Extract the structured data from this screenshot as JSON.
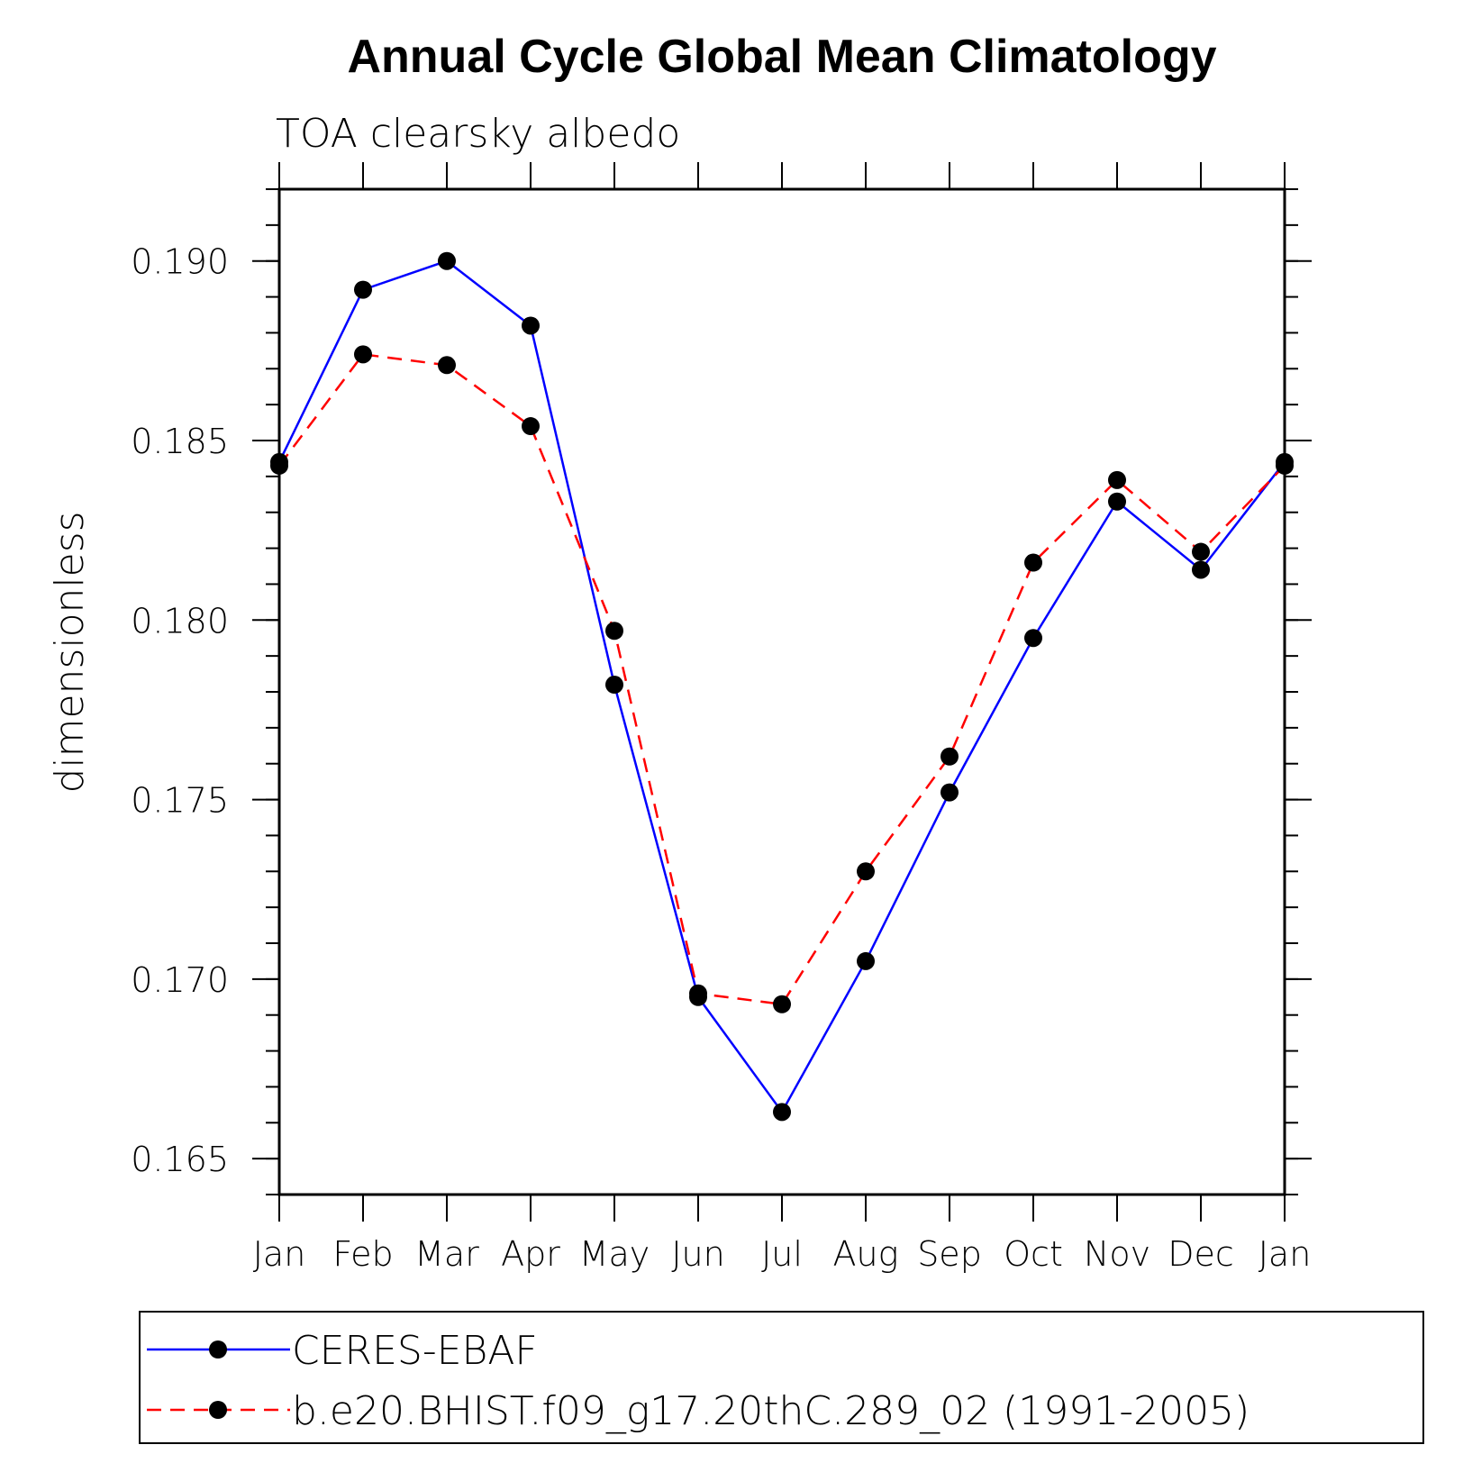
{
  "chart_data": {
    "type": "line",
    "title": "Annual Cycle Global Mean Climatology",
    "subtitle": "TOA clearsky albedo",
    "xlabel": "",
    "ylabel": "dimensionless",
    "categories": [
      "Jan",
      "Feb",
      "Mar",
      "Apr",
      "May",
      "Jun",
      "Jul",
      "Aug",
      "Sep",
      "Oct",
      "Nov",
      "Dec",
      "Jan"
    ],
    "ylim": [
      0.164,
      0.192
    ],
    "yticks": [
      0.165,
      0.17,
      0.175,
      0.18,
      0.185,
      0.19
    ],
    "ytick_labels": [
      "0.165",
      "0.170",
      "0.175",
      "0.180",
      "0.185",
      "0.190"
    ],
    "grid": false,
    "legend_position": "bottom",
    "series": [
      {
        "name": "CERES-EBAF",
        "color": "#0000ff",
        "style": "solid",
        "values": [
          0.1844,
          0.1892,
          0.19,
          0.1882,
          0.1782,
          0.1695,
          0.1663,
          0.1705,
          0.1752,
          0.1795,
          0.1833,
          0.1814,
          0.1844
        ]
      },
      {
        "name": "b.e20.BHIST.f09_g17.20thC.289_02 (1991-2005)",
        "color": "#ff0000",
        "style": "dashed",
        "values": [
          0.1843,
          0.1874,
          0.1871,
          0.1854,
          0.1797,
          0.1696,
          0.1693,
          0.173,
          0.1762,
          0.1816,
          0.1839,
          0.1819,
          0.1843
        ]
      }
    ]
  }
}
